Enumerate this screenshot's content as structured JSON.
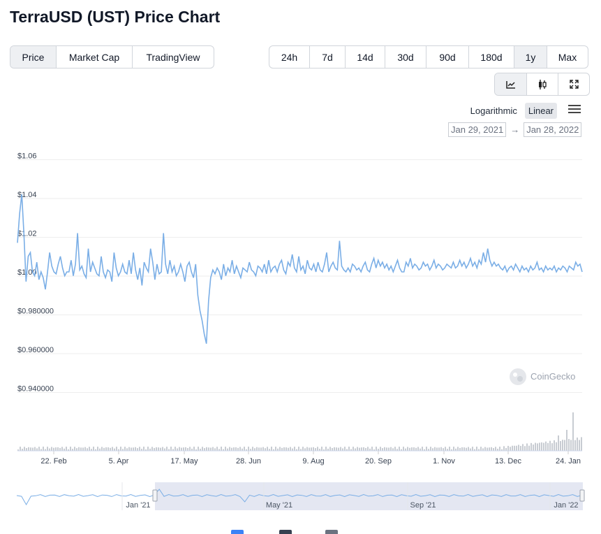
{
  "page_title": "TerraUSD (UST) Price Chart",
  "view_tabs": [
    {
      "label": "Price",
      "active": true
    },
    {
      "label": "Market Cap",
      "active": false
    },
    {
      "label": "TradingView",
      "active": false
    }
  ],
  "range_tabs": [
    {
      "label": "24h",
      "active": false
    },
    {
      "label": "7d",
      "active": false
    },
    {
      "label": "14d",
      "active": false
    },
    {
      "label": "30d",
      "active": false
    },
    {
      "label": "90d",
      "active": false
    },
    {
      "label": "180d",
      "active": false
    },
    {
      "label": "1y",
      "active": true
    },
    {
      "label": "Max",
      "active": false
    }
  ],
  "tools": [
    {
      "icon": "line-chart-icon",
      "active": true
    },
    {
      "icon": "candlestick-icon",
      "active": false
    },
    {
      "icon": "expand-icon",
      "active": false
    }
  ],
  "scale": {
    "log_label": "Logarithmic",
    "linear_label": "Linear",
    "selected": "Linear"
  },
  "date_range": {
    "from": "Jan 29, 2021",
    "to": "Jan 28, 2022"
  },
  "watermark": "CoinGecko",
  "colors": {
    "line": "#7aaee6",
    "volume": "#c8ccd2",
    "navigator_fill": "#dfe3f0",
    "grid": "#eeeeee"
  },
  "chart_data": {
    "type": "line",
    "ylim": [
      0.93,
      1.065
    ],
    "yticks": [
      {
        "value": 1.06,
        "label": "$1.06"
      },
      {
        "value": 1.04,
        "label": "$1.04"
      },
      {
        "value": 1.02,
        "label": "$1.02"
      },
      {
        "value": 1.0,
        "label": "$1.00"
      },
      {
        "value": 0.98,
        "label": "$0.980000"
      },
      {
        "value": 0.96,
        "label": "$0.960000"
      },
      {
        "value": 0.94,
        "label": "$0.940000"
      }
    ],
    "xticks": [
      "22. Feb",
      "5. Apr",
      "17. May",
      "28. Jun",
      "9. Aug",
      "20. Sep",
      "1. Nov",
      "13. Dec",
      "24. Jan"
    ],
    "grid": true,
    "series": [
      {
        "values": [
          1.015,
          1.03,
          1.04,
          1.02,
          0.995,
          1.008,
          1.01,
          1.0,
          0.998,
          1.005,
          0.996,
          1.0,
          0.997,
          0.991,
          1.0,
          1.01,
          1.003,
          1.0,
          0.999,
          1.004,
          1.008,
          1.002,
          0.998,
          1.0,
          1.0,
          1.006,
          0.998,
          1.004,
          1.02,
          1.001,
          1.003,
          0.999,
          0.997,
          1.012,
          1.0,
          1.005,
          1.002,
          0.999,
          0.998,
          1.008,
          1.0,
          0.997,
          1.001,
          1.0,
          0.995,
          1.01,
          1.002,
          0.998,
          1.0,
          1.004,
          1.0,
          0.999,
          1.006,
          0.999,
          1.01,
          1.001,
          0.996,
          1.002,
          0.993,
          1.005,
          1.002,
          1.0,
          1.012,
          1.005,
          0.996,
          1.004,
          0.999,
          1.0,
          1.02,
          1.004,
          0.999,
          1.006,
          1.0,
          1.003,
          0.998,
          1.0,
          1.004,
          1.0,
          0.995,
          1.003,
          1.005,
          1.0,
          0.997,
          1.004,
          0.988,
          0.98,
          0.975,
          0.968,
          0.963,
          0.985,
          0.997,
          1.001,
          0.999,
          1.002,
          1.0,
          0.996,
          1.004,
          0.998,
          1.002,
          1.0,
          1.006,
          0.999,
          1.003,
          1.0,
          0.997,
          1.002,
          1.001,
          1.0,
          1.005,
          1.001,
          1.0,
          0.998,
          1.003,
          1.002,
          1.0,
          1.004,
          0.999,
          1.006,
          1.0,
          1.002,
          1.003,
          1.0,
          1.004,
          1.006,
          1.001,
          0.999,
          1.005,
          1.003,
          1.009,
          1.002,
          1.0,
          1.008,
          1.001,
          1.003,
          0.999,
          1.006,
          1.002,
          1.001,
          1.004,
          1.0,
          1.005,
          1.001,
          1.0,
          1.004,
          1.01,
          1.0,
          1.003,
          1.005,
          1.002,
          1.001,
          1.016,
          1.003,
          1.001,
          1.0,
          1.002,
          1.0,
          1.004,
          1.003,
          1.001,
          1.002,
          1.0,
          1.003,
          1.005,
          1.001,
          1.0,
          1.004,
          1.007,
          1.002,
          1.006,
          1.003,
          1.005,
          1.002,
          1.004,
          1.001,
          1.003,
          1.0,
          1.003,
          1.006,
          1.002,
          1.0,
          1.0,
          1.005,
          1.003,
          1.007,
          1.002,
          1.004,
          1.003,
          1.001,
          1.002,
          1.005,
          1.003,
          1.004,
          1.001,
          1.003,
          1.006,
          1.002,
          1.004,
          1.003,
          1.001,
          1.002,
          1.004,
          1.003,
          1.002,
          1.005,
          1.002,
          1.003,
          1.006,
          1.003,
          1.005,
          1.002,
          1.004,
          1.007,
          1.003,
          1.005,
          1.002,
          1.006,
          1.004,
          1.01,
          1.005,
          1.012,
          1.006,
          1.003,
          1.005,
          1.003,
          1.004,
          1.002,
          1.001,
          1.003,
          1.0,
          1.002,
          1.003,
          1.001,
          1.004,
          1.002,
          1.0,
          1.003,
          1.001,
          1.002,
          1.0,
          1.003,
          1.001,
          1.002,
          1.005,
          1.001,
          1.002,
          1.0,
          1.003,
          1.001,
          1.002,
          1.001,
          1.003,
          1.0,
          1.002,
          1.001,
          1.003,
          1.002,
          1.0,
          1.003,
          1.002,
          1.001,
          1.005,
          1.003,
          1.004,
          1.0
        ]
      }
    ]
  }
}
